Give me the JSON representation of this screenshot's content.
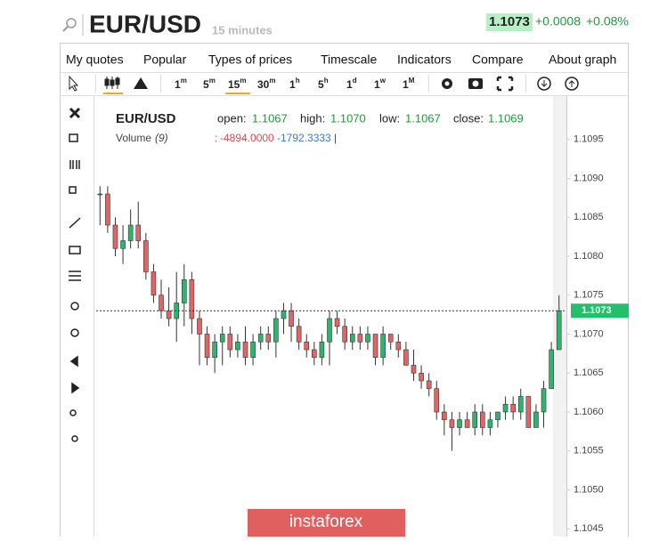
{
  "header": {
    "symbol": "EUR/USD",
    "timeframe": "15 minutes",
    "price": "1.1073",
    "change": "+0.0008",
    "change_pct": "+0.08%"
  },
  "menu": [
    "My quotes",
    "Popular",
    "Types of prices",
    "Timescale",
    "Indicators",
    "Compare",
    "About graph"
  ],
  "timeframes": [
    [
      "1",
      "m"
    ],
    [
      "5",
      "m"
    ],
    [
      "15",
      "m"
    ],
    [
      "30",
      "m"
    ],
    [
      "1",
      "h"
    ],
    [
      "5",
      "h"
    ],
    [
      "1",
      "d"
    ],
    [
      "1",
      "w"
    ],
    [
      "1",
      "M"
    ]
  ],
  "watermark": "instaforex",
  "chart_data": {
    "type": "candlestick",
    "title": "EUR/USD",
    "ohlc_info": {
      "open_label": "open:",
      "open": "1.1067",
      "high_label": "high:",
      "high": "1.1070",
      "low_label": "low:",
      "low": "1.1067",
      "close_label": "close:",
      "close": "1.1069"
    },
    "volume_info": {
      "label": "Volume",
      "period": "(9)",
      "sep": ":",
      "v1": "-4894.0000",
      "v2": "-1792.3333",
      "end": "|"
    },
    "categories": [
      null,
      null,
      null,
      null,
      null,
      null,
      null,
      null,
      null,
      null,
      null,
      null,
      null,
      null,
      null,
      null,
      null,
      null,
      null,
      null,
      null,
      null,
      null,
      null,
      null,
      null,
      null,
      null,
      null,
      null,
      null,
      null,
      null,
      null,
      null,
      null,
      null,
      null,
      null,
      null,
      null,
      null,
      null,
      null,
      null,
      null,
      null,
      null,
      null,
      null,
      null,
      null,
      null,
      null,
      null,
      null,
      null,
      null,
      null,
      null,
      null
    ],
    "open": [
      1.1088,
      1.1088,
      1.1084,
      1.1081,
      1.1082,
      1.1084,
      1.1082,
      1.1078,
      1.1075,
      1.1073,
      1.1072,
      1.1074,
      1.1077,
      1.1072,
      1.107,
      1.1067,
      1.1069,
      1.107,
      1.1068,
      1.1069,
      1.1067,
      1.1069,
      1.107,
      1.1069,
      1.1072,
      1.1073,
      1.1071,
      1.1069,
      1.1068,
      1.1067,
      1.1069,
      1.1072,
      1.1071,
      1.1069,
      1.107,
      1.1069,
      1.107,
      1.1067,
      1.107,
      1.1069,
      1.1068,
      1.1066,
      1.1065,
      1.1064,
      1.1063,
      1.106,
      1.1059,
      1.1058,
      1.1059,
      1.1058,
      1.106,
      1.1058,
      1.1059,
      1.106,
      1.1061,
      1.106,
      1.1062,
      1.1058,
      1.106,
      1.1063,
      1.1068
    ],
    "high": [
      1.1089,
      1.1089,
      1.1085,
      1.1084,
      1.1086,
      1.1087,
      1.1083,
      1.1079,
      1.1077,
      1.1076,
      1.1078,
      1.1079,
      1.1078,
      1.1073,
      1.1071,
      1.107,
      1.1071,
      1.1071,
      1.107,
      1.1071,
      1.107,
      1.1071,
      1.1071,
      1.1073,
      1.1074,
      1.1074,
      1.1072,
      1.107,
      1.1069,
      1.107,
      1.1073,
      1.1073,
      1.1072,
      1.1071,
      1.1071,
      1.1071,
      1.107,
      1.1071,
      1.107,
      1.107,
      1.1069,
      1.1068,
      1.1066,
      1.1065,
      1.1064,
      1.1061,
      1.106,
      1.106,
      1.106,
      1.1061,
      1.1061,
      1.106,
      1.106,
      1.1062,
      1.1062,
      1.1063,
      1.1062,
      1.1061,
      1.1064,
      1.1069,
      1.1075
    ],
    "low": [
      1.1084,
      1.1083,
      1.108,
      1.1079,
      1.1081,
      1.1081,
      1.1077,
      1.1074,
      1.1072,
      1.1071,
      1.1069,
      1.1071,
      1.107,
      1.1066,
      1.1066,
      1.1065,
      1.1066,
      1.1067,
      1.1067,
      1.1066,
      1.1066,
      1.1068,
      1.1068,
      1.1067,
      1.107,
      1.1069,
      1.1068,
      1.1067,
      1.1066,
      1.1066,
      1.1066,
      1.107,
      1.1068,
      1.1068,
      1.1068,
      1.1068,
      1.1066,
      1.1066,
      1.1068,
      1.1067,
      1.1066,
      1.1064,
      1.1063,
      1.1062,
      1.1059,
      1.1057,
      1.1055,
      1.1057,
      1.1058,
      1.1057,
      1.1057,
      1.1057,
      1.1058,
      1.1059,
      1.1059,
      1.1059,
      1.1058,
      1.1058,
      1.1058,
      1.1063,
      1.1068
    ],
    "close": [
      1.1088,
      1.1084,
      1.1081,
      1.1082,
      1.1084,
      1.1082,
      1.1078,
      1.1075,
      1.1073,
      1.1072,
      1.1074,
      1.1077,
      1.1072,
      1.107,
      1.1067,
      1.1069,
      1.107,
      1.1068,
      1.1069,
      1.1067,
      1.1069,
      1.107,
      1.1069,
      1.1072,
      1.1073,
      1.1071,
      1.1069,
      1.1068,
      1.1067,
      1.1069,
      1.1072,
      1.1071,
      1.1069,
      1.107,
      1.1069,
      1.107,
      1.1067,
      1.107,
      1.1069,
      1.1068,
      1.1066,
      1.1065,
      1.1064,
      1.1063,
      1.106,
      1.1059,
      1.1058,
      1.1059,
      1.1058,
      1.106,
      1.1058,
      1.1059,
      1.106,
      1.1061,
      1.106,
      1.1062,
      1.1058,
      1.106,
      1.1063,
      1.1068,
      1.1073
    ],
    "up_color": "#2fb46e",
    "down_color": "#e46464",
    "last_price": 1.1073,
    "ylim": [
      1.1044,
      1.11
    ],
    "yticks": [
      1.1045,
      {
        "value": 1.105,
        "label": "1.1050"
      },
      1.1055,
      {
        "value": 1.106,
        "label": "1.1060"
      },
      1.1065,
      {
        "value": 1.107,
        "label": "1.1070"
      },
      1.1075,
      {
        "value": 1.108,
        "label": "1.1080"
      },
      1.1085,
      {
        "value": 1.109,
        "label": "1.1090"
      },
      1.1095
    ]
  }
}
